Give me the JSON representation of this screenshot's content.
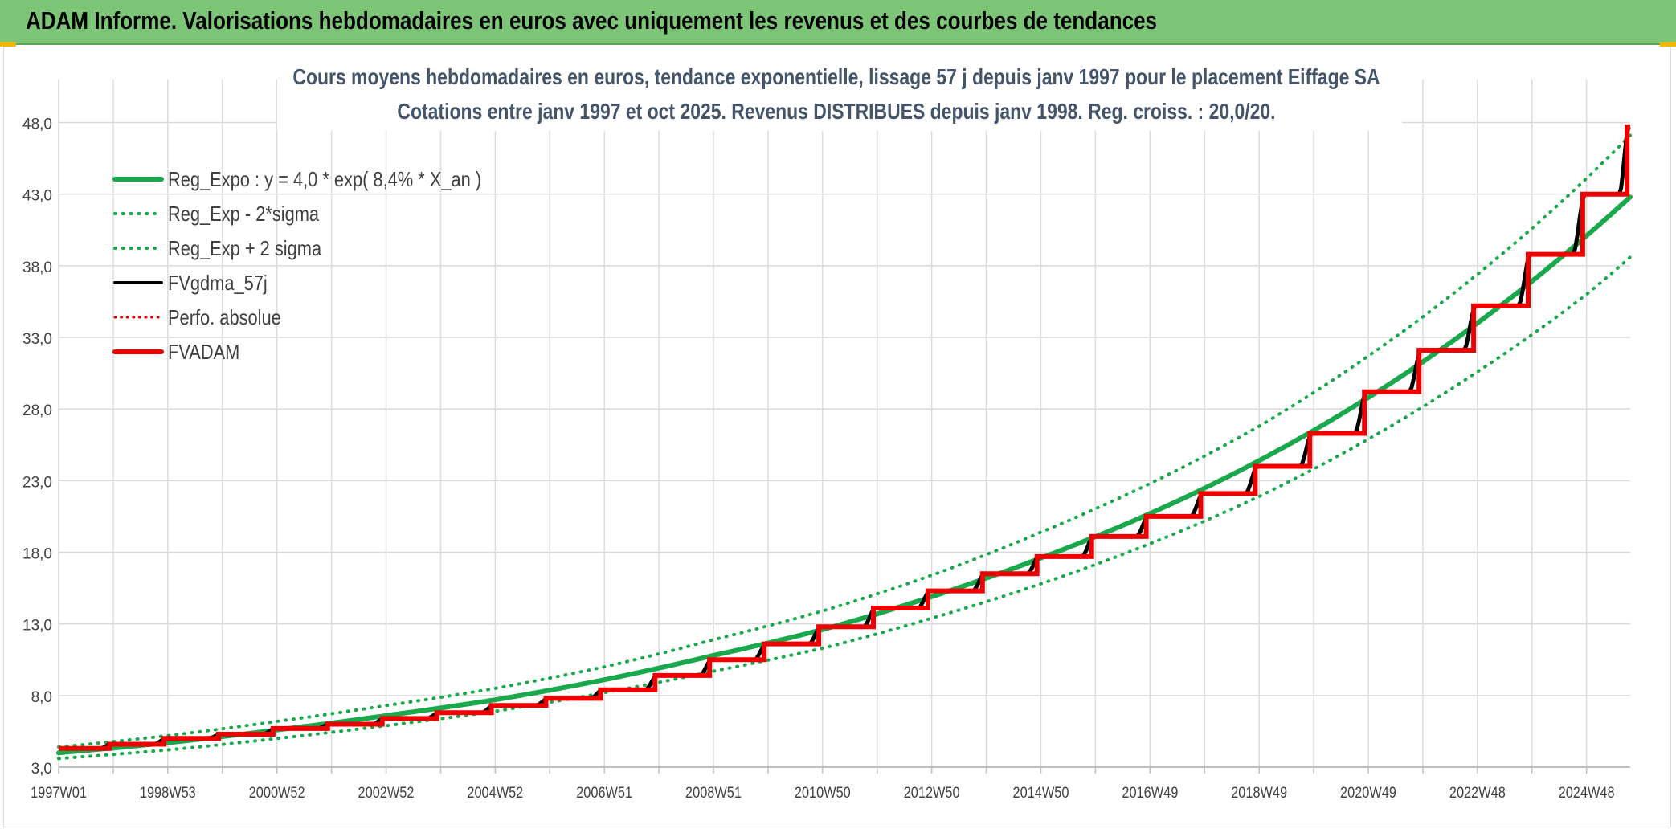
{
  "header": {
    "title": "ADAM Informe. Valorisations hebdomadaires en euros avec uniquement les revenus et des courbes de tendances"
  },
  "chart_data": {
    "type": "line",
    "title_line1": "Cours moyens hebdomadaires en euros, tendance exponentielle, lissage 57 j depuis janv 1997 pour le placement Eiffage SA",
    "title_line2": "Cotations entre janv 1997 et oct 2025. Revenus DISTRIBUES depuis janv 1998. Reg. croiss. : 20,0/20.",
    "xlabel": "",
    "ylabel": "",
    "ylim": [
      3.0,
      51.0
    ],
    "xlim": [
      0,
      28.8
    ],
    "y_ticks": [
      "3,0",
      "8,0",
      "13,0",
      "18,0",
      "23,0",
      "28,0",
      "33,0",
      "38,0",
      "43,0",
      "48,0"
    ],
    "x_tick_labels": [
      "1997W01",
      "1998W53",
      "2000W52",
      "2002W52",
      "2004W52",
      "2006W51",
      "2008W51",
      "2010W50",
      "2012W50",
      "2014W50",
      "2016W49",
      "2018W49",
      "2020W49",
      "2022W48",
      "2024W48"
    ],
    "grid": true,
    "legend_position": "top-left",
    "legend": [
      {
        "name": "Reg_Expo : y = 4,0 * exp( 8,4% *  X_an )",
        "color": "#1aa84c",
        "style": "solid",
        "width": 6
      },
      {
        "name": "Reg_Exp - 2*sigma",
        "color": "#1aa84c",
        "style": "dotted",
        "width": 4
      },
      {
        "name": "Reg_Exp + 2 sigma",
        "color": "#1aa84c",
        "style": "dotted",
        "width": 4
      },
      {
        "name": "FVgdma_57j",
        "color": "#000000",
        "style": "solid",
        "width": 4
      },
      {
        "name": "Perfo. absolue",
        "color": "#e00000",
        "style": "dotted",
        "width": 3
      },
      {
        "name": "FVADAM",
        "color": "#ee0000",
        "style": "solid",
        "width": 6
      }
    ],
    "series": [
      {
        "name": "Reg_Expo : y = 4,0 * exp( 8,4% *  X_an )",
        "x": [
          0,
          2,
          4,
          6,
          8,
          10,
          12,
          14,
          16,
          18,
          20,
          22,
          24,
          26,
          28,
          28.8
        ],
        "values": [
          4.0,
          4.7,
          5.6,
          6.6,
          7.7,
          9.1,
          10.8,
          12.6,
          14.9,
          17.6,
          20.7,
          24.4,
          28.8,
          34.0,
          40.1,
          42.8
        ]
      },
      {
        "name": "Reg_Exp - 2*sigma",
        "x": [
          0,
          2,
          4,
          6,
          8,
          10,
          12,
          14,
          16,
          18,
          20,
          22,
          24,
          26,
          28,
          28.8
        ],
        "values": [
          3.6,
          4.2,
          5.0,
          5.9,
          6.9,
          8.2,
          9.7,
          11.3,
          13.4,
          15.8,
          18.6,
          21.9,
          25.9,
          30.6,
          36.0,
          38.6
        ]
      },
      {
        "name": "Reg_Exp + 2 sigma",
        "x": [
          0,
          2,
          4,
          6,
          8,
          10,
          12,
          14,
          16,
          18,
          20,
          22,
          24,
          26,
          28,
          28.8
        ],
        "values": [
          4.4,
          5.2,
          6.2,
          7.3,
          8.5,
          10.0,
          11.9,
          13.9,
          16.4,
          19.4,
          22.8,
          26.8,
          31.7,
          37.4,
          44.1,
          47.1
        ]
      },
      {
        "name": "FVADAM",
        "type": "step",
        "x": [
          0,
          1.0,
          2.0,
          3.0,
          4.0,
          5.0,
          6.0,
          7.0,
          8.0,
          9.0,
          10.0,
          11.0,
          12.0,
          13.0,
          14.0,
          15.0,
          16.0,
          17.0,
          18.0,
          19.0,
          20.0,
          21.0,
          22.0,
          23.0,
          24.0,
          25.0,
          26.0,
          27.0,
          28.0,
          28.8
        ],
        "values": [
          4.3,
          4.6,
          5.0,
          5.3,
          5.7,
          6.0,
          6.4,
          6.8,
          7.3,
          7.8,
          8.4,
          9.4,
          10.5,
          11.6,
          12.8,
          14.1,
          15.3,
          16.5,
          17.7,
          19.1,
          20.5,
          22.1,
          24.0,
          26.3,
          29.2,
          32.1,
          35.2,
          38.8,
          43.0,
          47.7
        ]
      },
      {
        "name": "FVgdma_57j",
        "type": "smoothed-step",
        "x": [
          0,
          1.0,
          2.0,
          3.0,
          4.0,
          5.0,
          6.0,
          7.0,
          8.0,
          9.0,
          10.0,
          11.0,
          12.0,
          13.0,
          14.0,
          15.0,
          16.0,
          17.0,
          18.0,
          19.0,
          20.0,
          21.0,
          22.0,
          23.0,
          24.0,
          25.0,
          26.0,
          27.0,
          28.0,
          28.8
        ],
        "values": [
          4.3,
          4.6,
          5.0,
          5.3,
          5.7,
          6.0,
          6.4,
          6.8,
          7.3,
          7.8,
          8.4,
          9.4,
          10.5,
          11.6,
          12.8,
          14.1,
          15.3,
          16.5,
          17.7,
          19.1,
          20.5,
          22.1,
          24.0,
          26.3,
          29.2,
          32.1,
          35.2,
          38.8,
          43.0,
          47.7
        ]
      }
    ]
  }
}
